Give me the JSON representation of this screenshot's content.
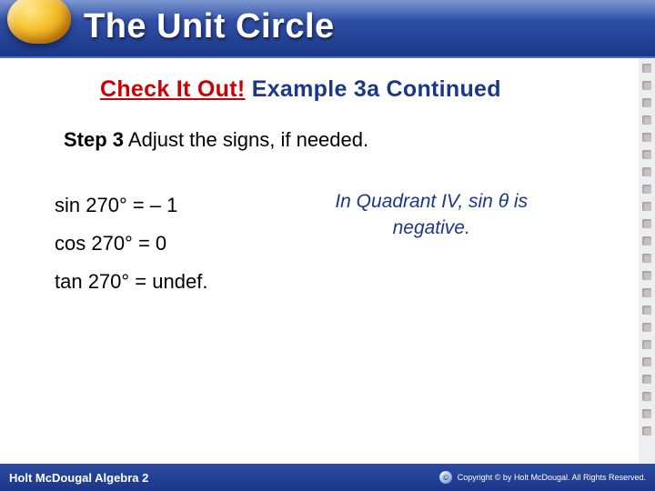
{
  "header": {
    "title": "The Unit Circle"
  },
  "subheader": {
    "red": "Check It Out!",
    "blue": "Example 3a Continued"
  },
  "step": {
    "label": "Step 3",
    "text": " Adjust the signs, if needed."
  },
  "equations": {
    "line1": "sin 270° = – 1",
    "line2": "cos 270° = 0",
    "line3": "tan 270° = undef."
  },
  "note": {
    "line1": "In Quadrant IV, sin θ is",
    "line2": "negative."
  },
  "footer": {
    "left": "Holt McDougal Algebra 2",
    "right": "Copyright © by Holt McDougal. All Rights Reserved."
  },
  "colors": {
    "headerGradTop": "#3a5fb8",
    "headerGradBottom": "#1a3789",
    "red": "#cc0000",
    "blueText": "#1a3789",
    "background": "#ffffff"
  }
}
